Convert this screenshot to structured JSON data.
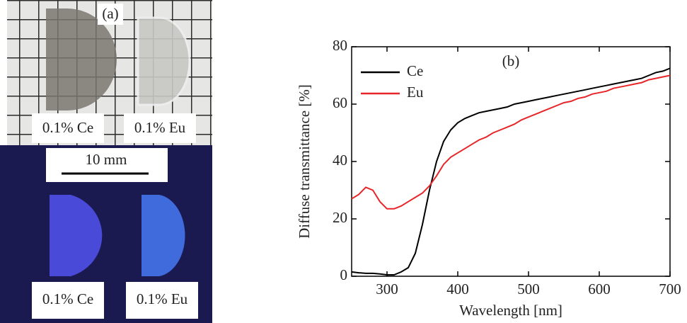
{
  "panel_a": {
    "label": "(a)",
    "top_labels": [
      "0.1% Ce",
      "0.1% Eu"
    ],
    "scale_bar": "10 mm",
    "bottom_labels": [
      "0.1% Ce",
      "0.1% Eu"
    ]
  },
  "chart_data": {
    "type": "line",
    "panel_label": "(b)",
    "x_label": "Wavelength [nm]",
    "y_label": "Diffuse transmittance [%]",
    "x": [
      250,
      260,
      270,
      280,
      290,
      300,
      310,
      320,
      330,
      340,
      350,
      360,
      370,
      380,
      390,
      400,
      410,
      420,
      430,
      440,
      450,
      460,
      470,
      480,
      490,
      500,
      510,
      520,
      530,
      540,
      550,
      560,
      570,
      580,
      590,
      600,
      610,
      620,
      630,
      640,
      650,
      660,
      670,
      680,
      690,
      700
    ],
    "series": [
      {
        "name": "Ce",
        "color": "#000000",
        "values": [
          1.5,
          1.2,
          1,
          1,
          0.8,
          0.5,
          0.5,
          1.5,
          3,
          8,
          18,
          30,
          40,
          47,
          51,
          53.5,
          55,
          56,
          57,
          57.5,
          58,
          58.5,
          59,
          60,
          60.5,
          61,
          61.5,
          62,
          62.5,
          63,
          63.5,
          64,
          64.5,
          65,
          65.5,
          66,
          66.5,
          67,
          67.5,
          68,
          68.5,
          69,
          70,
          71,
          71.5,
          72.5
        ]
      },
      {
        "name": "Eu",
        "color": "#e8262a",
        "values": [
          27,
          28.5,
          31,
          30,
          26,
          23.5,
          23.5,
          24.5,
          26,
          27.5,
          29,
          31.5,
          35,
          39,
          41.5,
          43,
          44.5,
          46,
          47.5,
          48.5,
          50,
          51,
          52,
          53,
          54.5,
          55.5,
          56.5,
          57.5,
          58.5,
          59.5,
          60.5,
          61,
          62,
          62.5,
          63.5,
          64,
          64.5,
          65.5,
          66,
          66.5,
          67,
          67.5,
          68.5,
          69,
          69.5,
          70
        ]
      }
    ],
    "xlim": [
      250,
      700
    ],
    "xticks": [
      300,
      400,
      500,
      600,
      700
    ],
    "ylim": [
      0,
      80
    ],
    "yticks": [
      0,
      20,
      40,
      60,
      80
    ]
  }
}
